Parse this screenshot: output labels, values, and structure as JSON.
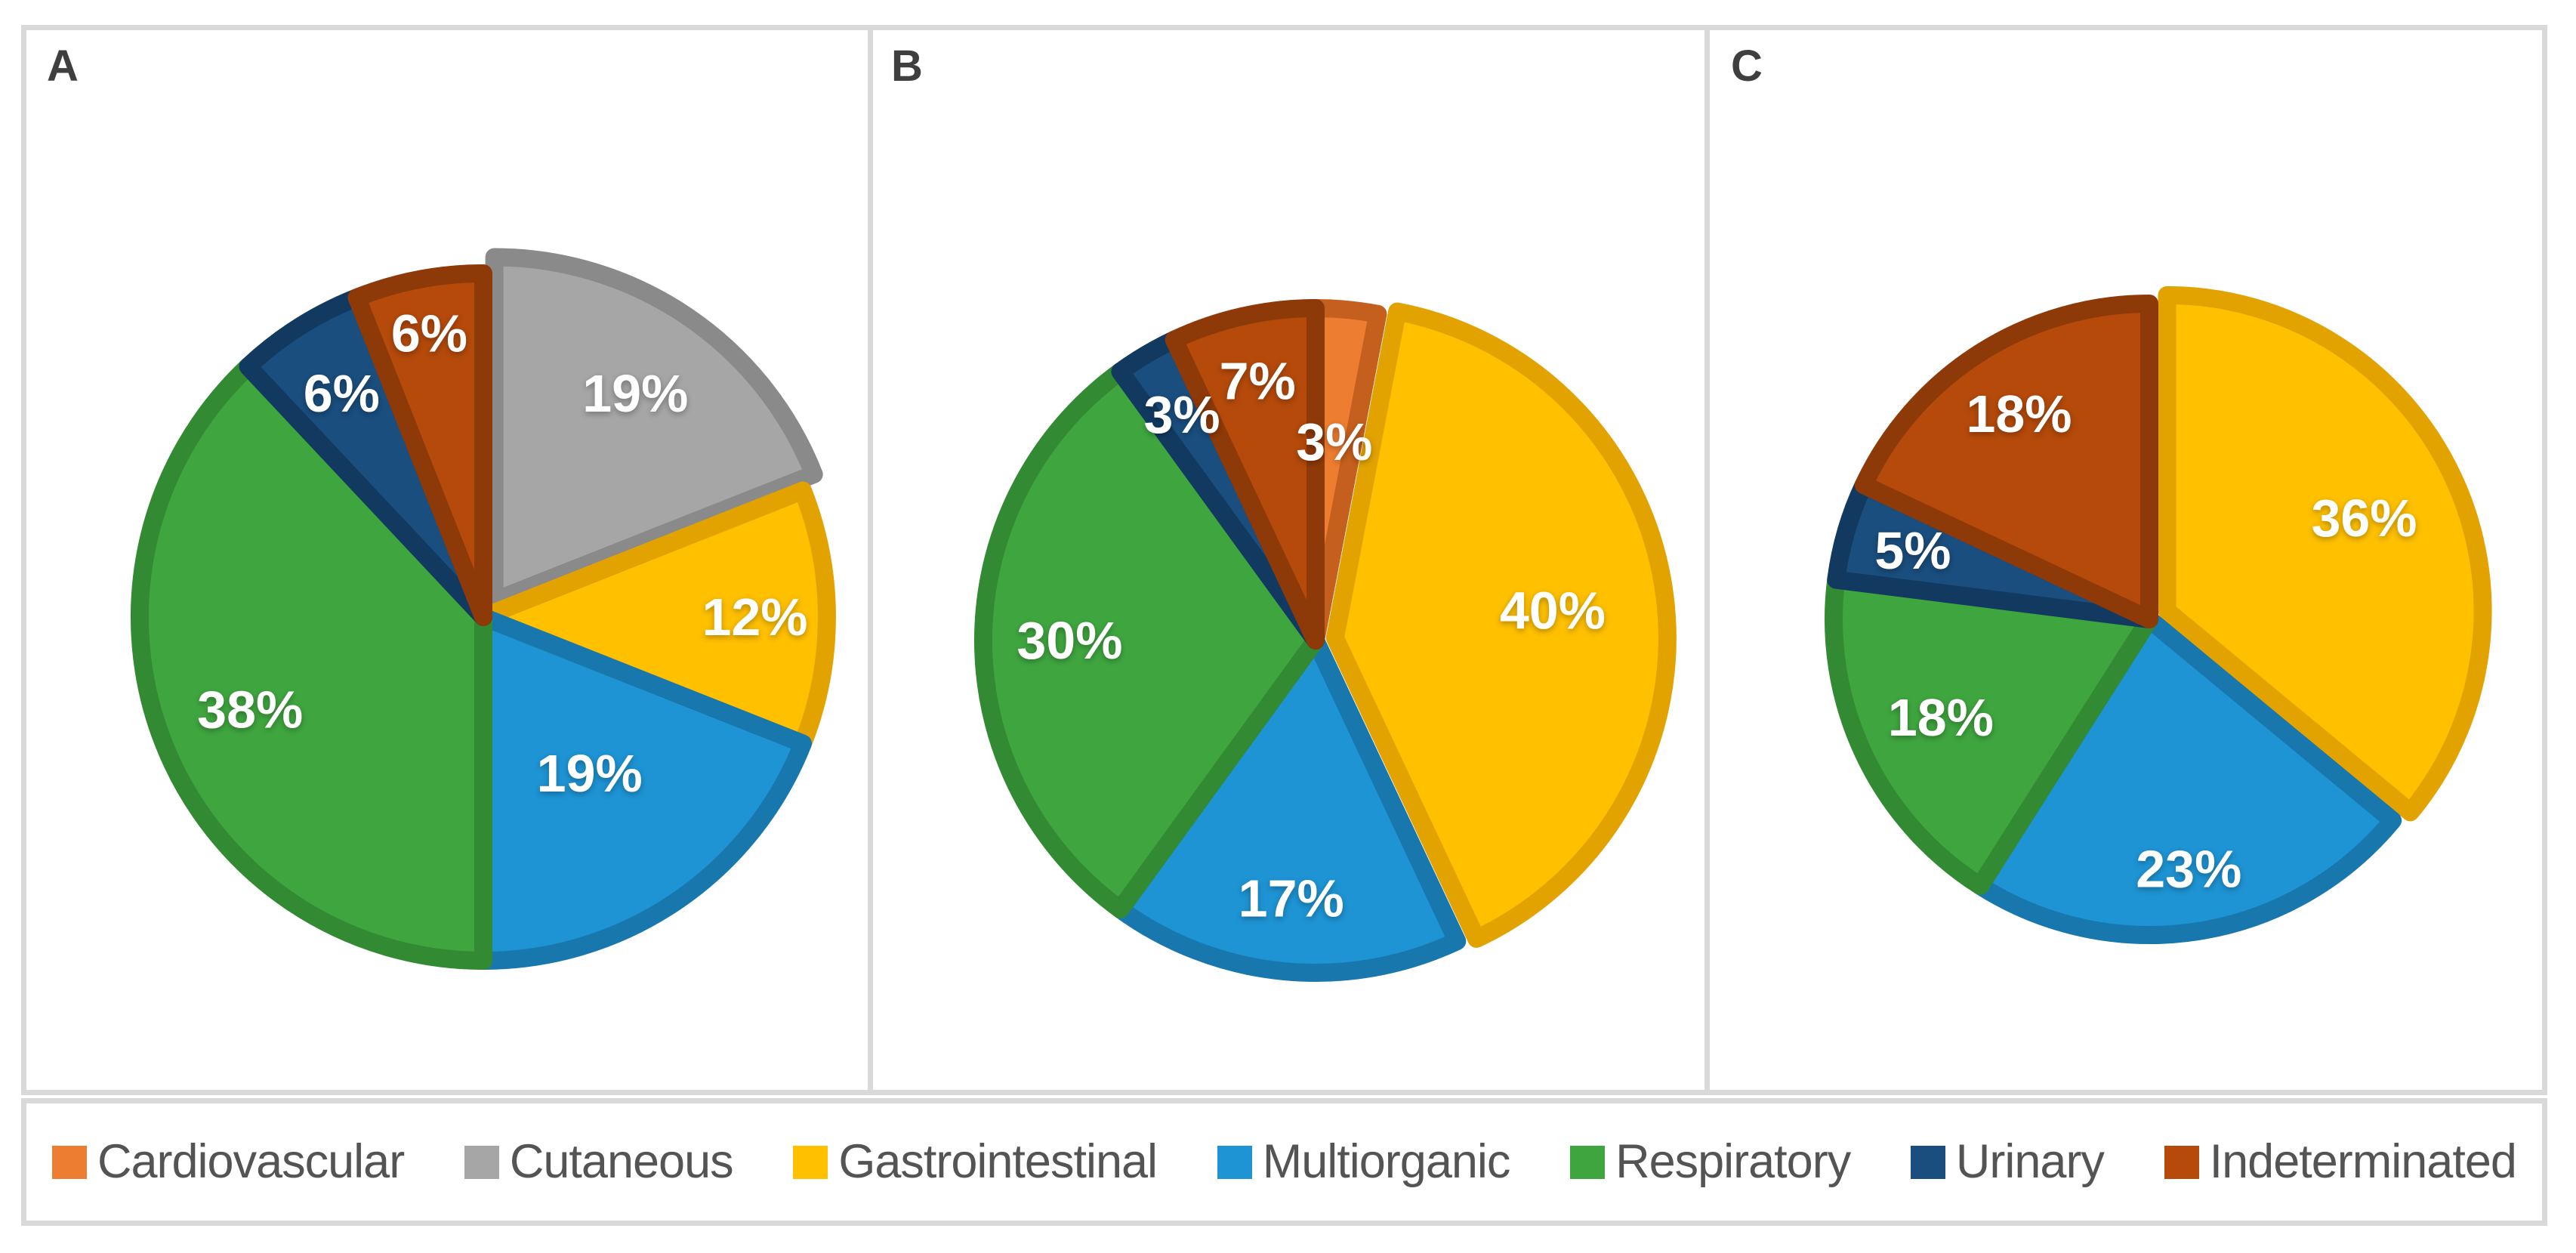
{
  "figure": {
    "panel_labels": [
      "A",
      "B",
      "C"
    ]
  },
  "legend": {
    "items": [
      {
        "label": "Cardiovascular",
        "color": "#ED7D31",
        "dark": "#C55F1D"
      },
      {
        "label": "Cutaneous",
        "color": "#A6A6A6",
        "dark": "#8A8A8A"
      },
      {
        "label": "Gastrointestinal",
        "color": "#FFC000",
        "dark": "#E2A200"
      },
      {
        "label": "Multiorganic",
        "color": "#1E94D4",
        "dark": "#1878AE"
      },
      {
        "label": "Respiratory",
        "color": "#3FA63F",
        "dark": "#328A32"
      },
      {
        "label": "Urinary",
        "color": "#1A4E7E",
        "dark": "#123A61"
      },
      {
        "label": "Indeterminated",
        "color": "#B54A0B",
        "dark": "#8E3908"
      }
    ]
  },
  "chart_data": [
    {
      "type": "pie",
      "panel": "A",
      "legend_position": "bottom-shared",
      "slices": [
        {
          "category": "Cutaneous",
          "value": 19,
          "label": "19%",
          "exploded": true
        },
        {
          "category": "Gastrointestinal",
          "value": 12,
          "label": "12%",
          "exploded": false
        },
        {
          "category": "Multiorganic",
          "value": 19,
          "label": "19%",
          "exploded": false
        },
        {
          "category": "Respiratory",
          "value": 38,
          "label": "38%",
          "exploded": false
        },
        {
          "category": "Urinary",
          "value": 6,
          "label": "6%",
          "exploded": false
        },
        {
          "category": "Indeterminated",
          "value": 6,
          "label": "6%",
          "exploded": false
        }
      ]
    },
    {
      "type": "pie",
      "panel": "B",
      "legend_position": "bottom-shared",
      "slices": [
        {
          "category": "Cardiovascular",
          "value": 3,
          "label": "3%",
          "exploded": false
        },
        {
          "category": "Gastrointestinal",
          "value": 40,
          "label": "40%",
          "exploded": true
        },
        {
          "category": "Multiorganic",
          "value": 17,
          "label": "17%",
          "exploded": false
        },
        {
          "category": "Respiratory",
          "value": 30,
          "label": "30%",
          "exploded": false
        },
        {
          "category": "Urinary",
          "value": 3,
          "label": "3%",
          "exploded": false
        },
        {
          "category": "Indeterminated",
          "value": 7,
          "label": "7%",
          "exploded": false
        }
      ]
    },
    {
      "type": "pie",
      "panel": "C",
      "legend_position": "bottom-shared",
      "slices": [
        {
          "category": "Gastrointestinal",
          "value": 36,
          "label": "36%",
          "exploded": true
        },
        {
          "category": "Multiorganic",
          "value": 23,
          "label": "23%",
          "exploded": false
        },
        {
          "category": "Respiratory",
          "value": 18,
          "label": "18%",
          "exploded": false
        },
        {
          "category": "Urinary",
          "value": 5,
          "label": "5%",
          "exploded": false
        },
        {
          "category": "Indeterminated",
          "value": 18,
          "label": "18%",
          "exploded": false
        }
      ]
    }
  ]
}
